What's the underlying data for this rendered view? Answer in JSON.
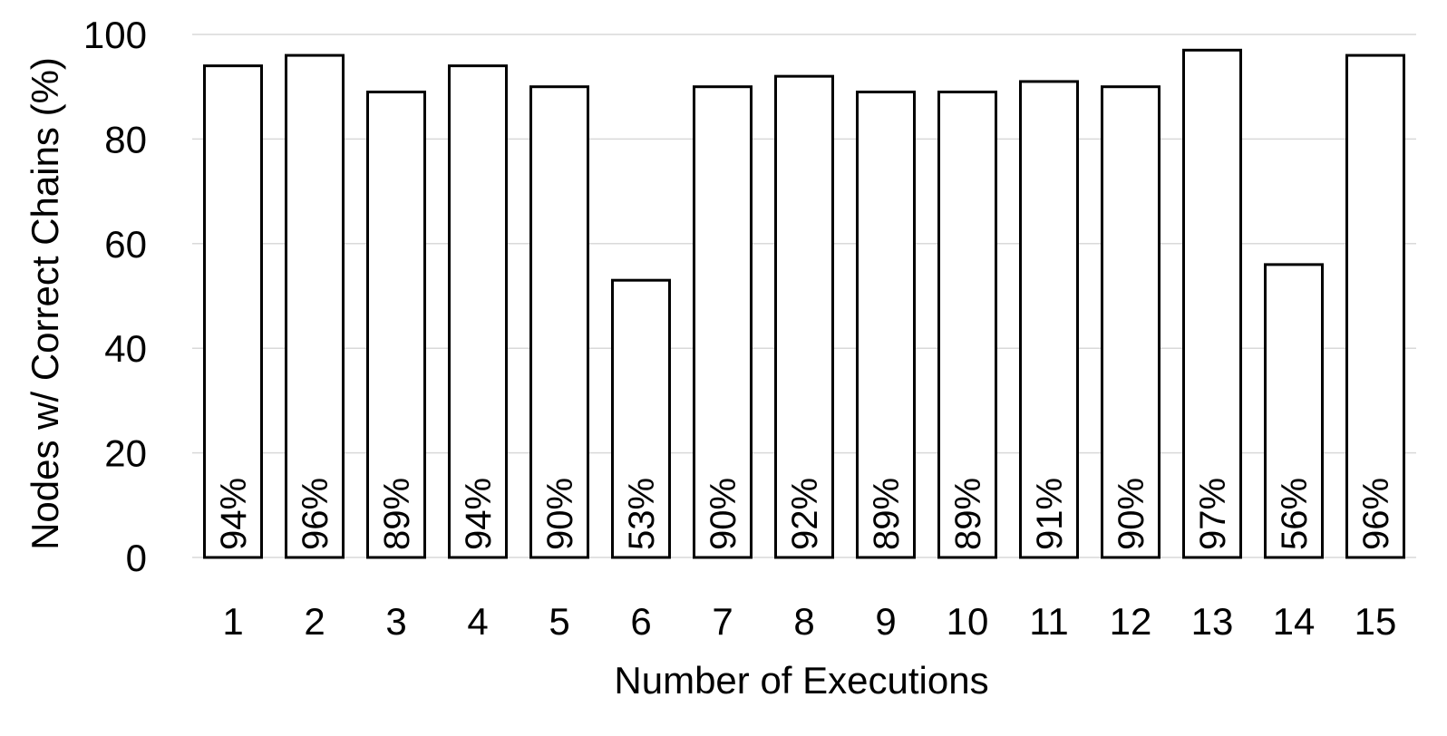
{
  "chart_data": {
    "type": "bar",
    "title": "",
    "xlabel": "Number of Executions",
    "ylabel": "Nodes w/ Correct Chains (%)",
    "ylim": [
      0,
      100
    ],
    "yticks": [
      0,
      20,
      40,
      60,
      80,
      100
    ],
    "grid": true,
    "categories": [
      "1",
      "2",
      "3",
      "4",
      "5",
      "6",
      "7",
      "8",
      "9",
      "10",
      "11",
      "12",
      "13",
      "14",
      "15"
    ],
    "values": [
      94,
      96,
      89,
      94,
      90,
      53,
      90,
      92,
      89,
      89,
      91,
      90,
      97,
      56,
      96
    ],
    "data_labels": [
      "94%",
      "96%",
      "89%",
      "94%",
      "90%",
      "53%",
      "90%",
      "92%",
      "89%",
      "89%",
      "91%",
      "90%",
      "97%",
      "56%",
      "96%"
    ],
    "colors": {
      "bar_fill": "#ffffff",
      "bar_stroke": "#000000",
      "grid": "#d9d9d9"
    }
  }
}
